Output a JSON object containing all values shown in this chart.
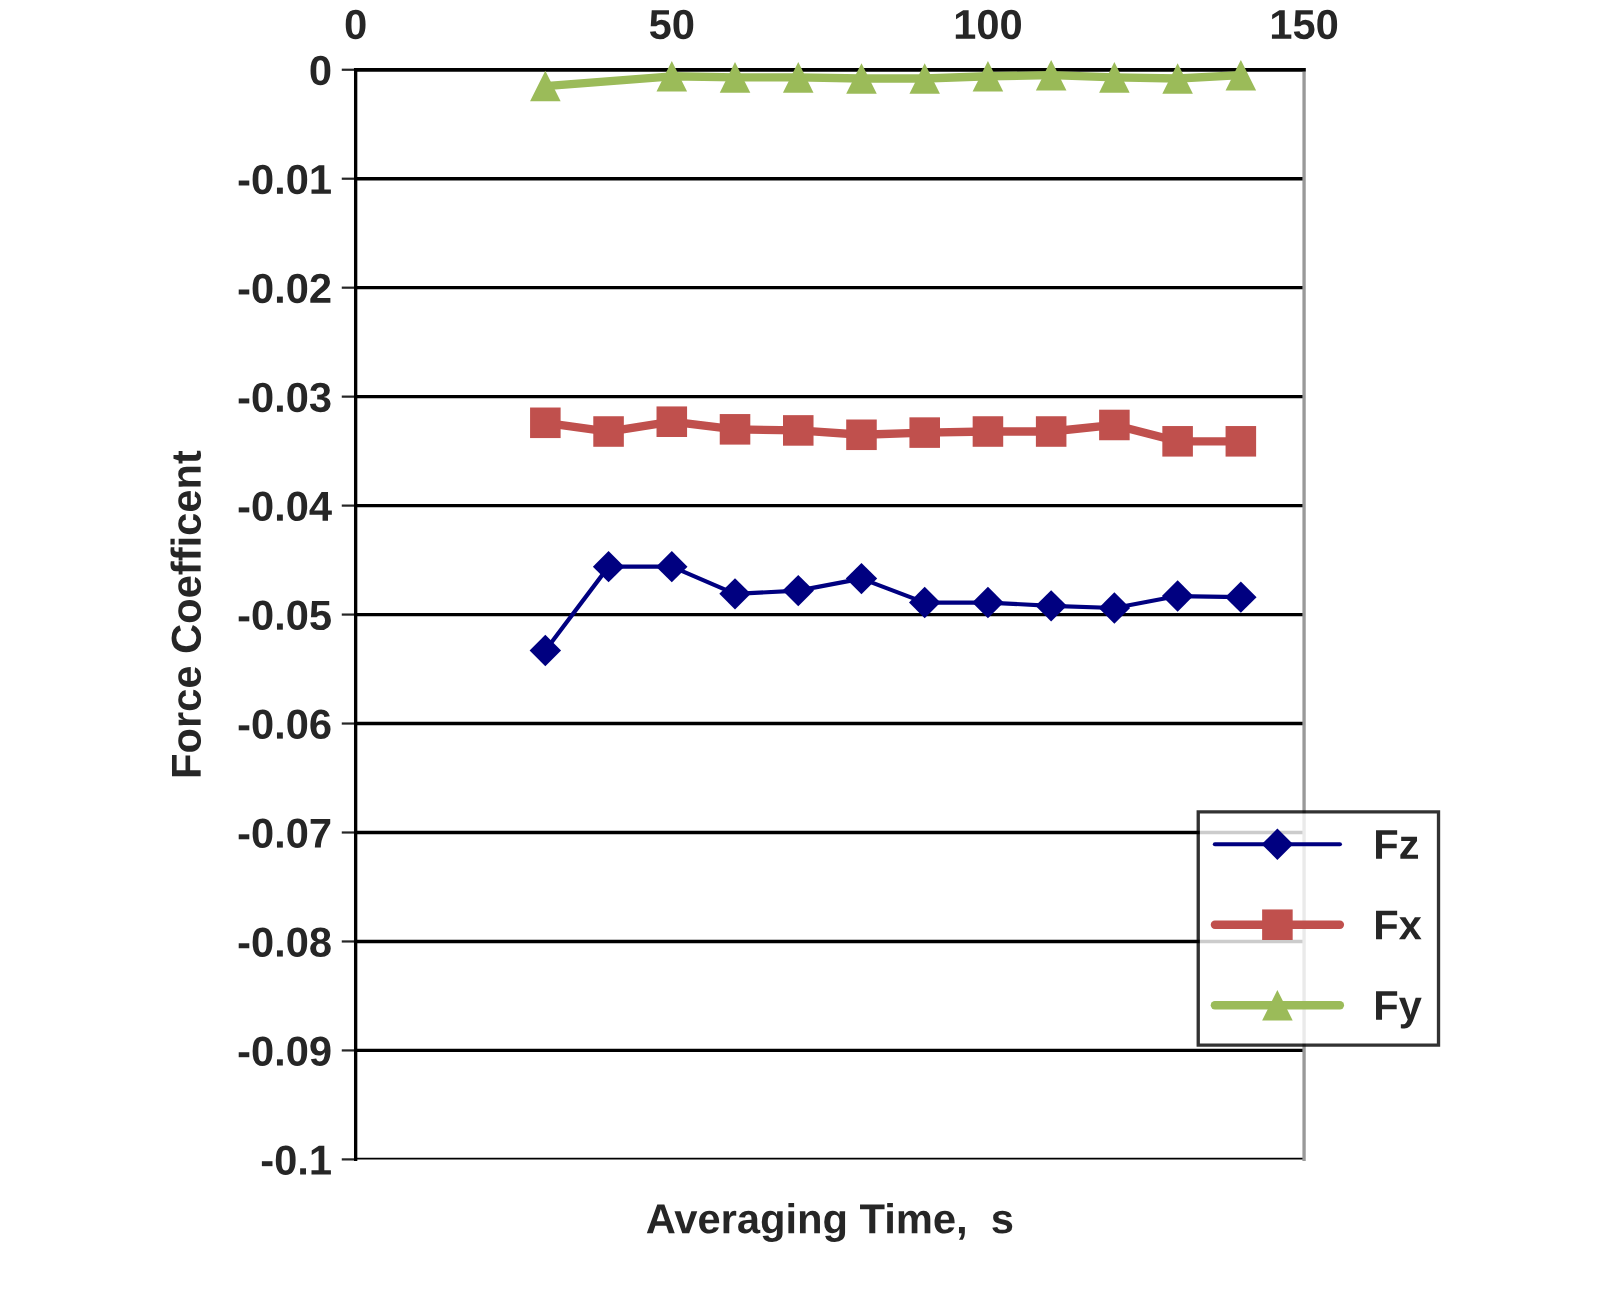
{
  "chart_data": {
    "type": "line",
    "xlabel": "Averaging Time,  s",
    "ylabel": "Force Coefficent",
    "xlim": [
      0,
      150
    ],
    "xticks": [
      0,
      50,
      100,
      150
    ],
    "ylim": [
      -0.1,
      0
    ],
    "yticks": [
      -0.1,
      -0.09,
      -0.08,
      -0.07,
      -0.06,
      -0.05,
      -0.04,
      -0.03,
      -0.02,
      -0.01,
      0
    ],
    "grid": "y",
    "legend": "bottom right",
    "series": [
      {
        "name": "Fz",
        "color": "#000080",
        "marker": "diamond",
        "x": [
          30,
          40,
          50,
          60,
          70,
          80,
          90,
          100,
          110,
          120,
          130,
          140
        ],
        "values": [
          -0.0533,
          -0.0456,
          -0.0456,
          -0.0481,
          -0.0478,
          -0.0467,
          -0.0489,
          -0.0489,
          -0.0492,
          -0.0494,
          -0.0483,
          -0.0484
        ]
      },
      {
        "name": "Fx",
        "color": "#c0504d",
        "marker": "square",
        "x": [
          30,
          40,
          50,
          60,
          70,
          80,
          90,
          100,
          110,
          120,
          130,
          140
        ],
        "values": [
          -0.0324,
          -0.0332,
          -0.0323,
          -0.033,
          -0.0331,
          -0.0335,
          -0.0333,
          -0.0332,
          -0.0332,
          -0.0326,
          -0.0341,
          -0.0341
        ]
      },
      {
        "name": "Fy",
        "color": "#9bbb59",
        "marker": "triangle",
        "x": [
          30,
          50,
          60,
          70,
          80,
          90,
          100,
          110,
          120,
          130,
          140
        ],
        "values": [
          -0.0015,
          -0.0006,
          -0.0007,
          -0.0007,
          -0.0008,
          -0.0008,
          -0.0006,
          -0.0005,
          -0.0007,
          -0.0008,
          -0.0005
        ]
      }
    ]
  }
}
